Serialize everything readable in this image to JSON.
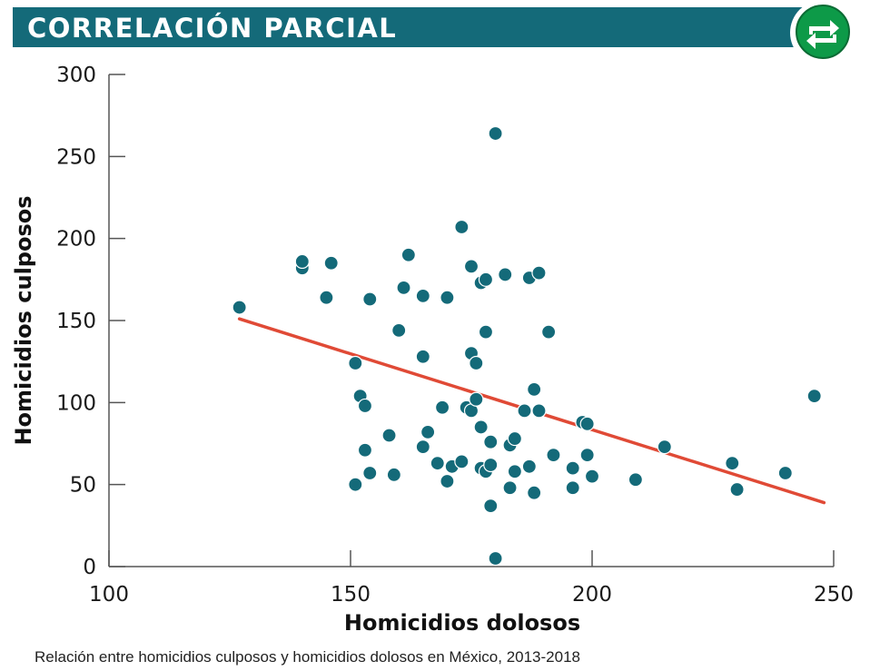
{
  "header": {
    "title": "CORRELACIÓN PARCIAL",
    "icon": "swap-arrows-icon"
  },
  "colors": {
    "header_bg": "#146a79",
    "point": "#146a79",
    "trend": "#e04a36",
    "icon_green": "#0d9a48"
  },
  "caption": "Relación entre homicidios culposos y homicidios dolosos en México, 2013-2018",
  "chart_data": {
    "type": "scatter",
    "title": "",
    "xlabel": "Homicidios dolosos",
    "ylabel": "Homicidios culposos",
    "xlim": [
      100,
      250
    ],
    "ylim": [
      0,
      300
    ],
    "x_ticks": [
      "100",
      "150",
      "200",
      "250"
    ],
    "y_ticks": [
      "0",
      "50",
      "100",
      "150",
      "200",
      "250",
      "300"
    ],
    "grid": false,
    "points": [
      [
        127,
        158
      ],
      [
        140,
        182
      ],
      [
        140,
        186
      ],
      [
        146,
        185
      ],
      [
        145,
        164
      ],
      [
        154,
        163
      ],
      [
        151,
        124
      ],
      [
        152,
        104
      ],
      [
        153,
        98
      ],
      [
        153,
        71
      ],
      [
        154,
        57
      ],
      [
        151,
        50
      ],
      [
        158,
        80
      ],
      [
        159,
        56
      ],
      [
        160,
        144
      ],
      [
        161,
        170
      ],
      [
        162,
        190
      ],
      [
        165,
        165
      ],
      [
        165,
        128
      ],
      [
        165,
        73
      ],
      [
        166,
        82
      ],
      [
        168,
        63
      ],
      [
        169,
        97
      ],
      [
        170,
        164
      ],
      [
        170,
        52
      ],
      [
        171,
        61
      ],
      [
        173,
        207
      ],
      [
        173,
        64
      ],
      [
        174,
        97
      ],
      [
        175,
        183
      ],
      [
        175,
        130
      ],
      [
        175,
        95
      ],
      [
        176,
        124
      ],
      [
        176,
        102
      ],
      [
        177,
        173
      ],
      [
        177,
        85
      ],
      [
        177,
        60
      ],
      [
        178,
        175
      ],
      [
        178,
        143
      ],
      [
        178,
        58
      ],
      [
        179,
        76
      ],
      [
        179,
        62
      ],
      [
        179,
        37
      ],
      [
        180,
        264
      ],
      [
        180,
        5
      ],
      [
        182,
        178
      ],
      [
        183,
        74
      ],
      [
        183,
        48
      ],
      [
        184,
        78
      ],
      [
        184,
        58
      ],
      [
        186,
        95
      ],
      [
        187,
        176
      ],
      [
        187,
        61
      ],
      [
        188,
        108
      ],
      [
        188,
        45
      ],
      [
        189,
        179
      ],
      [
        189,
        95
      ],
      [
        191,
        143
      ],
      [
        192,
        68
      ],
      [
        196,
        60
      ],
      [
        196,
        48
      ],
      [
        198,
        88
      ],
      [
        199,
        87
      ],
      [
        199,
        68
      ],
      [
        200,
        55
      ],
      [
        209,
        53
      ],
      [
        215,
        73
      ],
      [
        229,
        63
      ],
      [
        230,
        47
      ],
      [
        240,
        57
      ],
      [
        246,
        104
      ]
    ],
    "trendline": {
      "x": [
        127,
        248
      ],
      "y": [
        151,
        39
      ]
    }
  }
}
